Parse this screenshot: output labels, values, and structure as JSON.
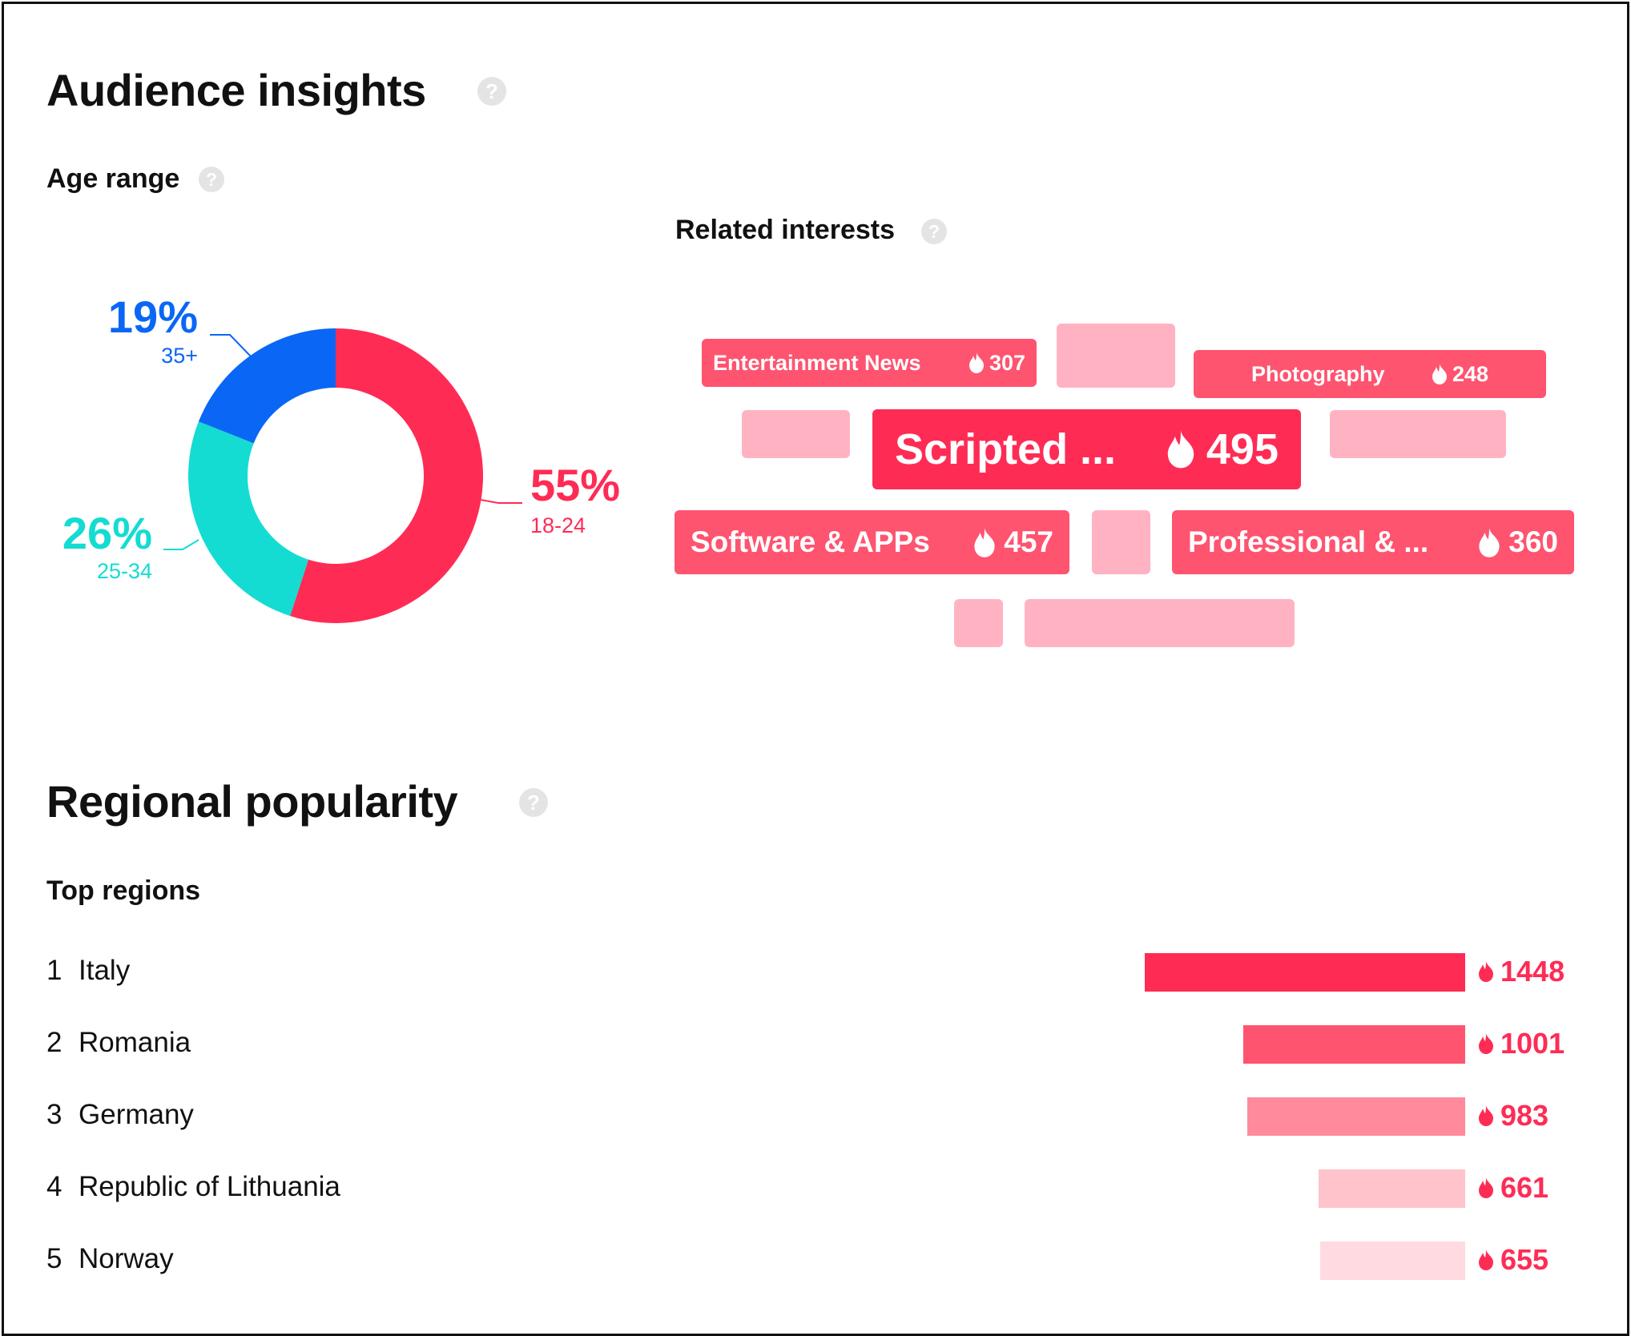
{
  "audience": {
    "title": "Audience insights",
    "age_range_title": "Age range",
    "related_interests_title": "Related interests",
    "help_glyph": "?"
  },
  "chart_data": [
    {
      "type": "pie",
      "title": "Age range",
      "slices": [
        {
          "label": "18-24",
          "value": 55,
          "pct_text": "55%",
          "color": "#fe2c55"
        },
        {
          "label": "25-34",
          "value": 26,
          "pct_text": "26%",
          "color": "#14dcd2"
        },
        {
          "label": "35+",
          "value": 19,
          "pct_text": "19%",
          "color": "#0a67f5"
        }
      ]
    },
    {
      "type": "bar",
      "title": "Top regions",
      "orientation": "horizontal",
      "categories": [
        "Italy",
        "Romania",
        "Germany",
        "Republic of Lithuania",
        "Norway"
      ],
      "ranks": [
        "1",
        "2",
        "3",
        "4",
        "5"
      ],
      "values": [
        1448,
        1001,
        983,
        661,
        655
      ],
      "value_labels": [
        "1448",
        "1001",
        "983",
        "661",
        "655"
      ],
      "colors": [
        "#fe2c55",
        "#fe5470",
        "#ff8a9b",
        "#ffc3cc",
        "#ffdbe1"
      ]
    }
  ],
  "interests": {
    "tags": [
      {
        "label": "Entertainment News",
        "count": "307"
      },
      {
        "label": "Photography",
        "count": "248"
      },
      {
        "label": "Scripted ...",
        "count": "495"
      },
      {
        "label": "Software & APPs",
        "count": "457"
      },
      {
        "label": "Professional & ...",
        "count": "360"
      }
    ],
    "tag_color": "#fe5470",
    "tag_color_strong": "#fe2c55",
    "placeholder_color": "#ffb3c2"
  },
  "regional": {
    "title": "Regional popularity",
    "top_regions_title": "Top regions"
  },
  "icons": {
    "help": "help-icon",
    "popularity": "flame-icon"
  }
}
